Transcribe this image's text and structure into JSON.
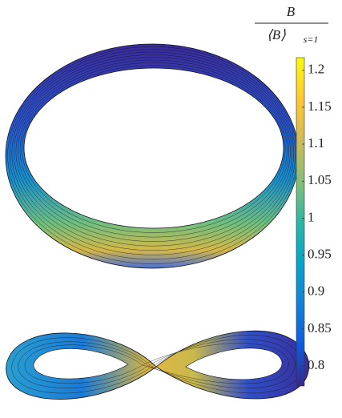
{
  "colorbar": {
    "label_numerator": "B",
    "label_denominator": "⟨B⟩",
    "label_subscript": "s=1",
    "lim": [
      0.773,
      1.217
    ],
    "ticks": [
      0.8,
      0.85,
      0.9,
      0.95,
      1,
      1.05,
      1.1,
      1.15,
      1.2
    ],
    "colormap": [
      "#352a87",
      "#0f5cdd",
      "#1481d6",
      "#06a4ca",
      "#2eb7a4",
      "#87bf77",
      "#d1bb59",
      "#fec832",
      "#f9fb0e"
    ]
  }
}
